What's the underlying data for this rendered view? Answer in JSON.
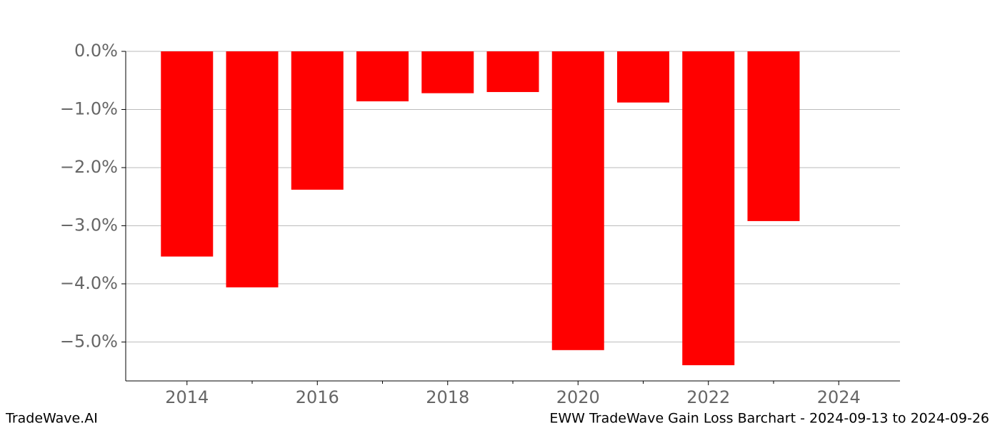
{
  "chart_data": {
    "type": "bar",
    "title": "EWW TradeWave Gain Loss Barchart - 2024-09-13 to 2024-09-26",
    "brand": "TradeWave.AI",
    "x": [
      2014,
      2015,
      2016,
      2017,
      2018,
      2019,
      2020,
      2021,
      2022,
      2023
    ],
    "values": [
      -3.53,
      -4.06,
      -2.38,
      -0.86,
      -0.72,
      -0.7,
      -5.14,
      -0.88,
      -5.4,
      -2.92
    ],
    "color": "#ff0000",
    "xlim": [
      2013.06,
      2024.94
    ],
    "xticks": [
      2014,
      2016,
      2018,
      2020,
      2022,
      2024
    ],
    "xminorticks": [
      2015,
      2017,
      2019,
      2021,
      2023
    ],
    "ylim": [
      -5.67,
      0
    ],
    "yticks": [
      {
        "value": 0,
        "label": "0.0%"
      },
      {
        "value": -1,
        "label": "−1.0%"
      },
      {
        "value": -2,
        "label": "−2.0%"
      },
      {
        "value": -3,
        "label": "−3.0%"
      },
      {
        "value": -4,
        "label": "−4.0%"
      },
      {
        "value": -5,
        "label": "−5.0%"
      }
    ],
    "grid": true
  }
}
